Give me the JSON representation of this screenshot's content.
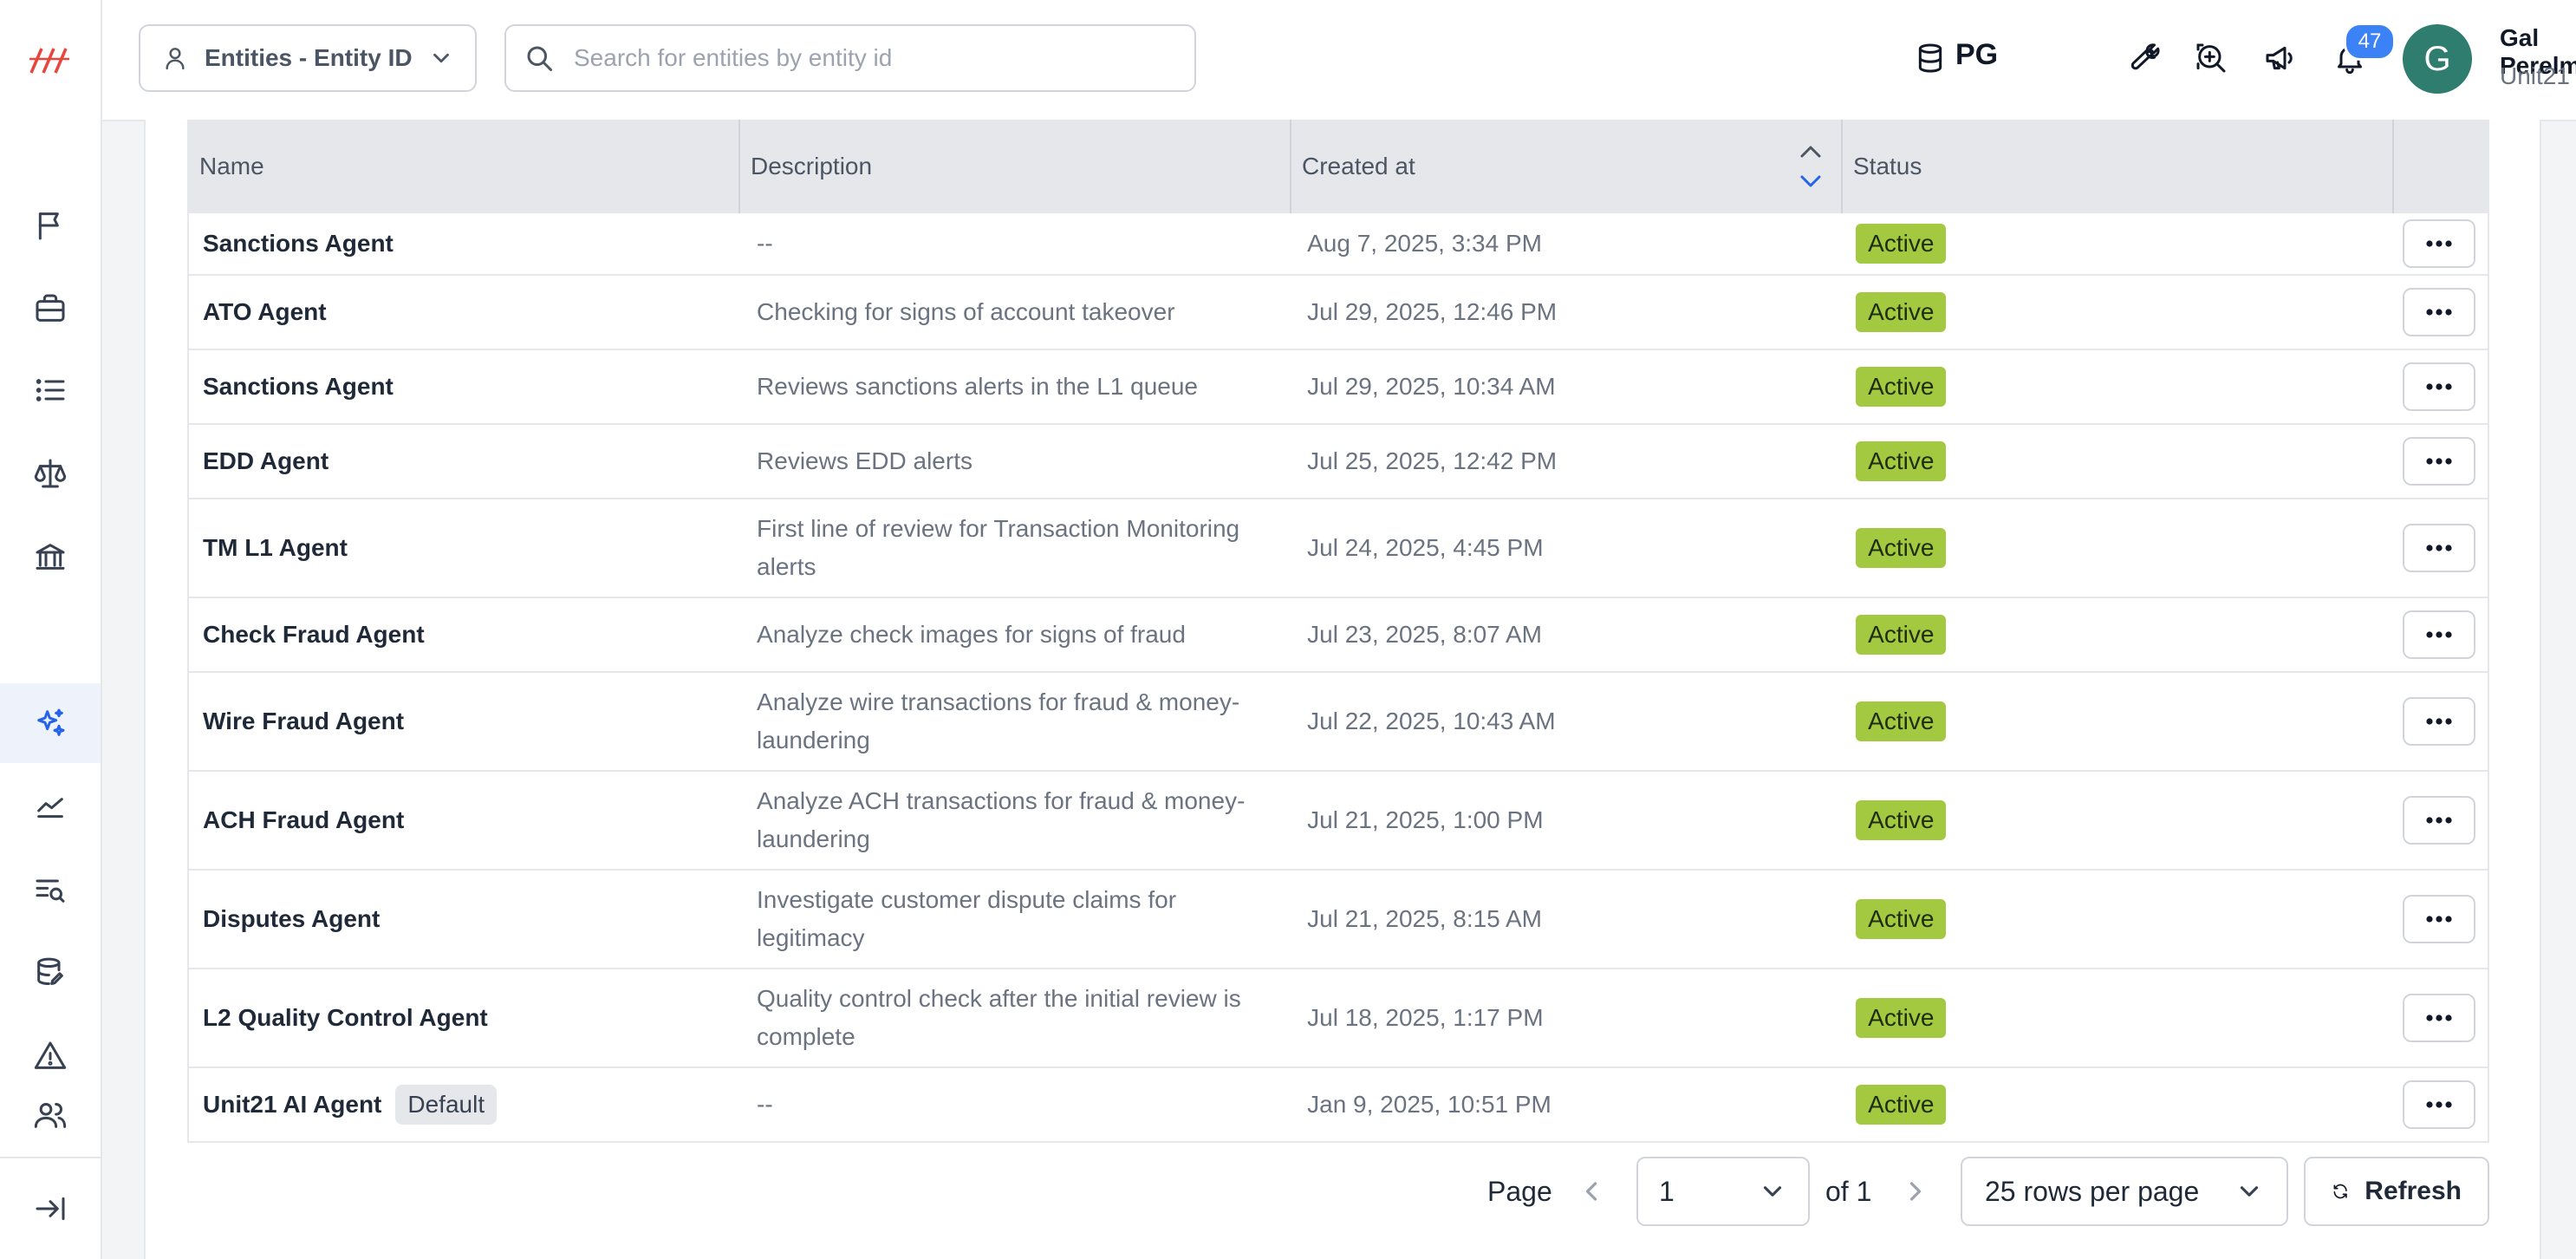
{
  "topbar": {
    "entity_select_label": "Entities - Entity ID",
    "search_placeholder": "Search for entities by entity id",
    "datasource_label": "PG",
    "notification_count": "47",
    "user": {
      "initial": "G",
      "name": "Gal Perelman",
      "org": "Unit21"
    }
  },
  "sidebar": {
    "icons": [
      "logo",
      "flag-icon",
      "briefcase-icon",
      "list-icon",
      "scale-icon",
      "bank-icon",
      "sparkles-icon",
      "chart-line-icon",
      "search-list-icon",
      "database-edit-icon",
      "alert-triangle-icon",
      "users-icon",
      "collapse-icon"
    ],
    "active": "sparkles-icon"
  },
  "table": {
    "headers": {
      "name": "Name",
      "description": "Description",
      "created_at": "Created at",
      "status": "Status"
    },
    "rows": [
      {
        "name": "Sanctions Agent",
        "description": "--",
        "created_at": "Aug 7, 2025, 3:34 PM",
        "status": "Active",
        "tag": ""
      },
      {
        "name": "ATO Agent",
        "description": "Checking for signs of account takeover",
        "created_at": "Jul 29, 2025, 12:46 PM",
        "status": "Active",
        "tag": ""
      },
      {
        "name": "Sanctions Agent",
        "description": "Reviews sanctions alerts in the L1 queue",
        "created_at": "Jul 29, 2025, 10:34 AM",
        "status": "Active",
        "tag": ""
      },
      {
        "name": "EDD Agent",
        "description": "Reviews EDD alerts",
        "created_at": "Jul 25, 2025, 12:42 PM",
        "status": "Active",
        "tag": ""
      },
      {
        "name": "TM L1 Agent",
        "description": "First line of review for Transaction Monitoring alerts",
        "created_at": "Jul 24, 2025, 4:45 PM",
        "status": "Active",
        "tag": ""
      },
      {
        "name": "Check Fraud Agent",
        "description": "Analyze check images for signs of fraud",
        "created_at": "Jul 23, 2025, 8:07 AM",
        "status": "Active",
        "tag": ""
      },
      {
        "name": "Wire Fraud Agent",
        "description": "Analyze wire transactions for fraud & money-laundering",
        "created_at": "Jul 22, 2025, 10:43 AM",
        "status": "Active",
        "tag": ""
      },
      {
        "name": "ACH Fraud Agent",
        "description": "Analyze ACH transactions for fraud & money-laundering",
        "created_at": "Jul 21, 2025, 1:00 PM",
        "status": "Active",
        "tag": ""
      },
      {
        "name": "Disputes Agent",
        "description": "Investigate customer dispute claims for legitimacy",
        "created_at": "Jul 21, 2025, 8:15 AM",
        "status": "Active",
        "tag": ""
      },
      {
        "name": "L2 Quality Control Agent",
        "description": "Quality control check after the initial review is complete",
        "created_at": "Jul 18, 2025, 1:17 PM",
        "status": "Active",
        "tag": ""
      },
      {
        "name": "Unit21 AI Agent",
        "description": "--",
        "created_at": "Jan 9, 2025, 10:51 PM",
        "status": "Active",
        "tag": "Default"
      }
    ]
  },
  "pagination": {
    "page_label": "Page",
    "current_page": "1",
    "of_label": "of 1",
    "rows_per_page": "25 rows per page",
    "refresh_label": "Refresh"
  },
  "colors": {
    "active_status": "#a3c940",
    "accent": "#3b82f6",
    "avatar": "#2f7d6e"
  }
}
